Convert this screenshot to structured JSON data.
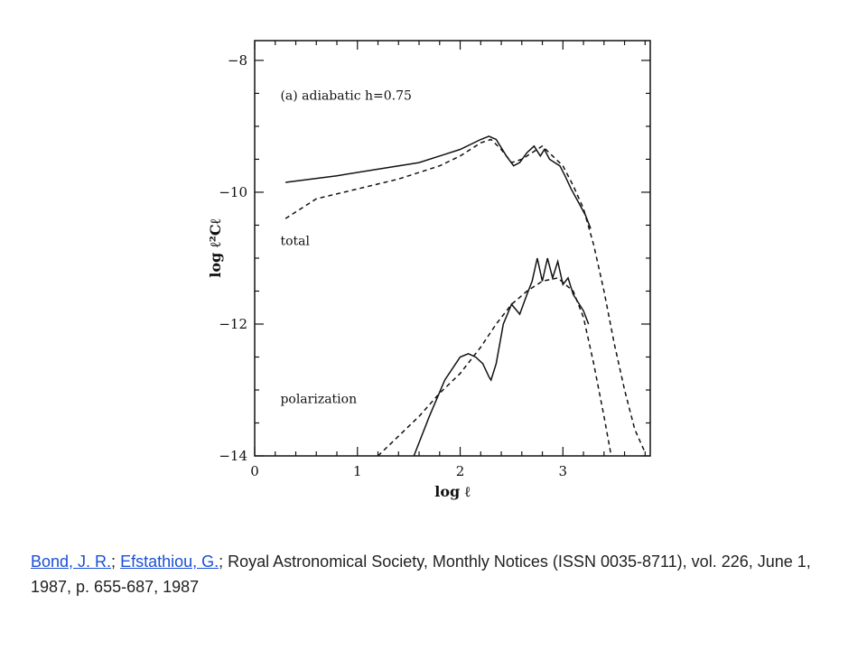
{
  "chart_data": {
    "type": "line",
    "title": "",
    "xlabel": "log ℓ",
    "ylabel": "log ℓ²Cℓ",
    "xlim": [
      0,
      3.85
    ],
    "ylim": [
      -14,
      -7.7
    ],
    "x_ticks": [
      0,
      1,
      2,
      3
    ],
    "y_ticks": [
      -8,
      -10,
      -12,
      -14
    ],
    "grid": false,
    "annotations": [
      {
        "text": "(a)  adiabatic  h=0.75",
        "at": [
          0.25,
          -8.6
        ]
      },
      {
        "text": "total",
        "at": [
          0.25,
          -10.8
        ]
      },
      {
        "text": "polarization",
        "at": [
          0.25,
          -13.2
        ]
      }
    ],
    "series": [
      {
        "group": "total",
        "style": "solid",
        "points": [
          [
            0.3,
            -9.85
          ],
          [
            0.8,
            -9.75
          ],
          [
            1.2,
            -9.65
          ],
          [
            1.6,
            -9.55
          ],
          [
            1.8,
            -9.45
          ],
          [
            2.0,
            -9.35
          ],
          [
            2.2,
            -9.2
          ],
          [
            2.28,
            -9.15
          ],
          [
            2.35,
            -9.2
          ],
          [
            2.45,
            -9.45
          ],
          [
            2.52,
            -9.6
          ],
          [
            2.58,
            -9.55
          ],
          [
            2.65,
            -9.4
          ],
          [
            2.72,
            -9.3
          ],
          [
            2.78,
            -9.45
          ],
          [
            2.82,
            -9.35
          ],
          [
            2.87,
            -9.5
          ],
          [
            2.92,
            -9.55
          ],
          [
            2.97,
            -9.6
          ],
          [
            3.02,
            -9.75
          ],
          [
            3.08,
            -9.95
          ],
          [
            3.15,
            -10.15
          ],
          [
            3.22,
            -10.35
          ],
          [
            3.27,
            -10.55
          ]
        ]
      },
      {
        "group": "total",
        "style": "dashed",
        "points": [
          [
            0.3,
            -10.4
          ],
          [
            0.6,
            -10.1
          ],
          [
            1.0,
            -9.95
          ],
          [
            1.4,
            -9.8
          ],
          [
            1.8,
            -9.6
          ],
          [
            2.0,
            -9.45
          ],
          [
            2.2,
            -9.25
          ],
          [
            2.3,
            -9.2
          ],
          [
            2.4,
            -9.35
          ],
          [
            2.5,
            -9.55
          ],
          [
            2.6,
            -9.5
          ],
          [
            2.7,
            -9.4
          ],
          [
            2.8,
            -9.3
          ],
          [
            2.9,
            -9.45
          ],
          [
            3.0,
            -9.6
          ],
          [
            3.1,
            -9.9
          ],
          [
            3.2,
            -10.25
          ],
          [
            3.3,
            -10.8
          ],
          [
            3.4,
            -11.5
          ],
          [
            3.5,
            -12.3
          ],
          [
            3.6,
            -13.0
          ],
          [
            3.7,
            -13.6
          ],
          [
            3.8,
            -13.95
          ]
        ]
      },
      {
        "group": "polarization",
        "style": "solid",
        "points": [
          [
            1.55,
            -14.0
          ],
          [
            1.7,
            -13.4
          ],
          [
            1.85,
            -12.85
          ],
          [
            2.0,
            -12.5
          ],
          [
            2.08,
            -12.45
          ],
          [
            2.15,
            -12.5
          ],
          [
            2.22,
            -12.6
          ],
          [
            2.28,
            -12.8
          ],
          [
            2.3,
            -12.85
          ],
          [
            2.35,
            -12.6
          ],
          [
            2.42,
            -12.0
          ],
          [
            2.5,
            -11.7
          ],
          [
            2.58,
            -11.85
          ],
          [
            2.65,
            -11.55
          ],
          [
            2.7,
            -11.35
          ],
          [
            2.75,
            -11.0
          ],
          [
            2.8,
            -11.35
          ],
          [
            2.85,
            -11.0
          ],
          [
            2.9,
            -11.3
          ],
          [
            2.95,
            -11.05
          ],
          [
            3.0,
            -11.4
          ],
          [
            3.05,
            -11.3
          ],
          [
            3.1,
            -11.55
          ],
          [
            3.2,
            -11.8
          ],
          [
            3.25,
            -12.0
          ]
        ]
      },
      {
        "group": "polarization",
        "style": "dashed",
        "points": [
          [
            1.2,
            -14.0
          ],
          [
            1.4,
            -13.7
          ],
          [
            1.6,
            -13.4
          ],
          [
            1.8,
            -13.05
          ],
          [
            2.0,
            -12.75
          ],
          [
            2.2,
            -12.35
          ],
          [
            2.35,
            -12.0
          ],
          [
            2.5,
            -11.7
          ],
          [
            2.65,
            -11.5
          ],
          [
            2.8,
            -11.35
          ],
          [
            2.95,
            -11.3
          ],
          [
            3.1,
            -11.5
          ],
          [
            3.2,
            -11.9
          ],
          [
            3.3,
            -12.6
          ],
          [
            3.4,
            -13.4
          ],
          [
            3.47,
            -14.0
          ]
        ]
      }
    ]
  },
  "citation": {
    "author1": "Bond, J. R.",
    "sep1": "; ",
    "author2": "Efstathiou, G.",
    "rest": "; Royal Astronomical Society, Monthly Notices (ISSN 0035-8711), vol. 226, June 1, 1987, p. 655-687, 1987"
  }
}
